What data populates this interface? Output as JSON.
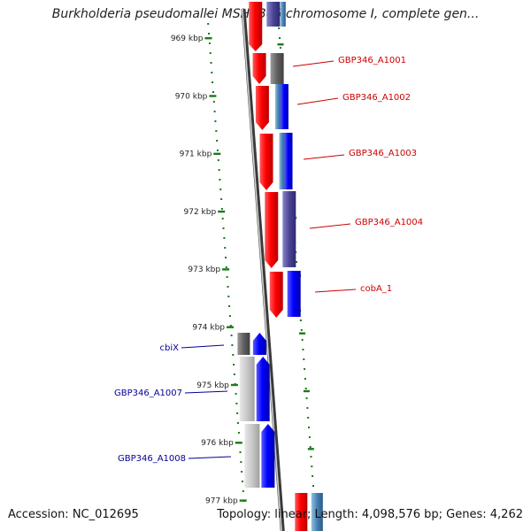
{
  "title": "Burkholderia pseudomallei MSHR346 chromosome I, complete gen...",
  "accession": "Accession: NC_012695",
  "summary": "Topology: linear; Length: 4,098,576 bp; Genes: 4,262",
  "ruler": {
    "unit": "kbp",
    "tick_labels": [
      "969 kbp",
      "970 kbp",
      "971 kbp",
      "972 kbp",
      "973 kbp",
      "974 kbp",
      "975 kbp",
      "976 kbp",
      "977 kbp"
    ],
    "color": "#1a7a1a"
  },
  "genes": [
    {
      "label": "GBP346_A1001",
      "strand": "+",
      "color": "#d40000"
    },
    {
      "label": "GBP346_A1002",
      "strand": "+",
      "color": "#d40000"
    },
    {
      "label": "GBP346_A1003",
      "strand": "+",
      "color": "#d40000"
    },
    {
      "label": "GBP346_A1004",
      "strand": "+",
      "color": "#d40000"
    },
    {
      "label": "cobA_1",
      "strand": "+",
      "color": "#d40000"
    },
    {
      "label": "cbiX",
      "strand": "-",
      "color": "#00008b"
    },
    {
      "label": "GBP346_A1007",
      "strand": "-",
      "color": "#00008b"
    },
    {
      "label": "GBP346_A1008",
      "strand": "-",
      "color": "#00008b"
    }
  ],
  "colors": {
    "forward_gene": "#ff0000",
    "reverse_gene": "#0000ff",
    "forward_label": "#cc0000",
    "reverse_label": "#000099",
    "axis": "#808080"
  }
}
